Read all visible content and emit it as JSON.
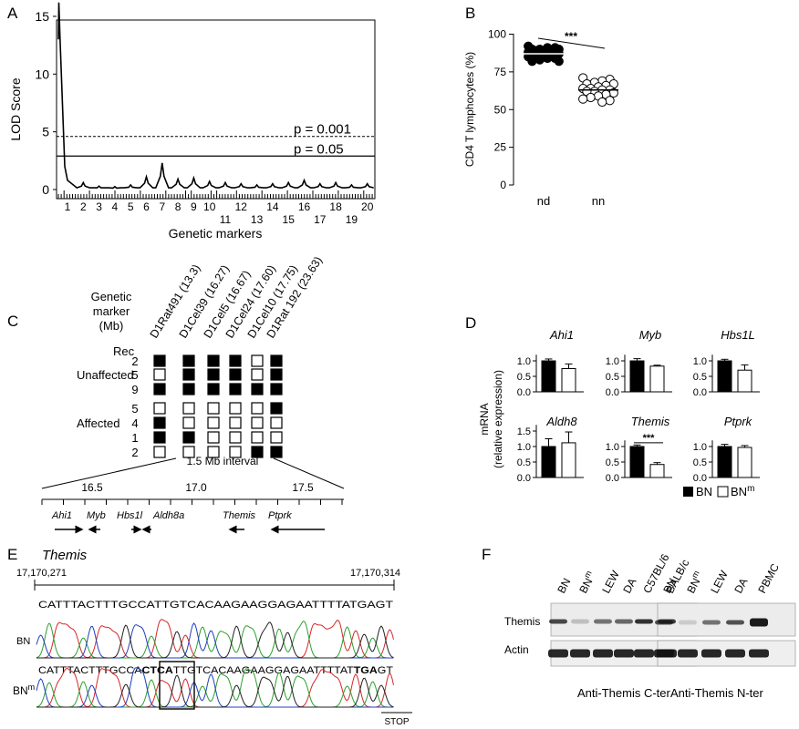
{
  "panels": {
    "A": {
      "letter": "A",
      "ylabel": "LOD Score",
      "xlabel": "Genetic markers",
      "y_ticks": [
        "0",
        "5",
        "10",
        "15"
      ],
      "chromosomes_top": [
        "1",
        "2",
        "3",
        "4",
        "5",
        "6",
        "7",
        "8",
        "9",
        "10",
        "12",
        "14",
        "16",
        "18",
        "20"
      ],
      "chromosomes_bottom": [
        "11",
        "13",
        "15",
        "17",
        "19"
      ],
      "threshold_high": "p = 0.001",
      "threshold_low": "p = 0.05"
    },
    "B": {
      "letter": "B",
      "ylabel": "CD4 T lymphocytes (%)",
      "y_ticks": [
        "0",
        "25",
        "50",
        "75",
        "100"
      ],
      "groups": [
        "nd",
        "nn"
      ],
      "significance": "***"
    },
    "C": {
      "letter": "C",
      "header_line1": "Genetic",
      "header_line2": "marker",
      "header_line3": "(Mb)",
      "markers": [
        "D1Rat491 (13.3)",
        "D1Cel39 (16.27)",
        "D1Cel5 (16.67)",
        "D1Cel24 (17.60)",
        "D1Cel10 (17.75)",
        "D1Rat 192 (23.63)"
      ],
      "rec_label": "Rec",
      "unaffected_label": "Unaffected",
      "affected_label": "Affected",
      "unaffected_rec": [
        "2",
        "5",
        "9"
      ],
      "affected_rec": [
        "5",
        "4",
        "1",
        "2"
      ],
      "unaffected_grid": [
        [
          1,
          1,
          1,
          1,
          0,
          1
        ],
        [
          0,
          1,
          1,
          1,
          0,
          1
        ],
        [
          1,
          1,
          1,
          1,
          1,
          1
        ]
      ],
      "affected_grid": [
        [
          0,
          0,
          0,
          0,
          0,
          1
        ],
        [
          1,
          0,
          0,
          0,
          0,
          0
        ],
        [
          1,
          1,
          0,
          0,
          0,
          0
        ],
        [
          0,
          0,
          0,
          0,
          1,
          1
        ]
      ],
      "interval_label": "1.5 Mb interval",
      "scale_ticks": [
        "16.5",
        "17.0",
        "17.5"
      ],
      "genes": [
        "Ahi1",
        "Myb",
        "Hbs1l",
        "Aldh8a",
        "Themis",
        "Ptprk"
      ]
    },
    "D": {
      "letter": "D",
      "ylabel_line1": "mRNA",
      "ylabel_line2": "(relative expression)",
      "significance": "***",
      "legend_bn": "BN",
      "legend_bnm_base": "BN",
      "legend_bnm_sup": "m"
    },
    "E": {
      "letter": "E",
      "gene": "Themis",
      "start_coord": "17,170,271",
      "end_coord": "17,170,314",
      "seq_bn": "CATTTACTTTGCCATTGTCACAAGAAGGAGAATTTTATGAGT",
      "seq_bnm_a": "CATTTACTTTGCCA",
      "seq_bnm_b": "CTCA",
      "seq_bnm_c": "TTGTCACAAGAAGGAGAATTTTAT",
      "seq_bnm_d": "TGA",
      "seq_bnm_e": "GT",
      "label_bn": "BN",
      "label_bnm_base": "BN",
      "label_bnm_sup": "m",
      "stop_label": "STOP"
    },
    "F": {
      "letter": "F",
      "lanes_left": [
        "BN",
        "BNm",
        "LEW",
        "DA",
        "C57BL/6",
        "BALB/c"
      ],
      "lanes_right": [
        "BN",
        "BNm",
        "LEW",
        "DA",
        "PBMC"
      ],
      "row_themis": "Themis",
      "row_actin": "Actin",
      "caption_left": "Anti-Themis C-ter",
      "caption_right": "Anti-Themis N-ter"
    }
  },
  "chart_data": [
    {
      "panel": "A",
      "type": "line",
      "title": "",
      "xlabel": "Genetic markers",
      "ylabel": "LOD Score",
      "ylim": [
        0,
        16.5
      ],
      "x_categories": [
        "1",
        "2",
        "3",
        "4",
        "5",
        "6",
        "7",
        "8",
        "9",
        "10",
        "11",
        "12",
        "13",
        "14",
        "15",
        "16",
        "17",
        "18",
        "19",
        "20"
      ],
      "peak": {
        "chromosome": "1",
        "lod": 16.2
      },
      "series": [
        {
          "values": [
            16.2,
            0.6,
            0.3,
            0.25,
            0.4,
            1.1,
            2.3,
            0.9,
            1.0,
            0.7,
            0.6,
            0.5,
            0.4,
            0.5,
            0.6,
            0.8,
            0.5,
            0.6,
            0.4,
            0.5
          ]
        }
      ],
      "thresholds": [
        {
          "label": "p = 0.001",
          "value": 4.6,
          "style": "dashed"
        },
        {
          "label": "p = 0.05",
          "value": 2.9,
          "style": "solid"
        }
      ]
    },
    {
      "panel": "B",
      "type": "scatter",
      "title": "",
      "ylabel": "CD4 T lymphocytes (%)",
      "ylim": [
        0,
        100
      ],
      "categories": [
        "nd",
        "nn"
      ],
      "series": [
        {
          "category": "nd",
          "marker": "filled",
          "mean": 87,
          "values": [
            92,
            91,
            91,
            90,
            90,
            90,
            89,
            89,
            89,
            88,
            88,
            88,
            87,
            87,
            87,
            86,
            86,
            85,
            85,
            84,
            84,
            83,
            82,
            82
          ]
        },
        {
          "category": "nn",
          "marker": "open",
          "mean": 63,
          "values": [
            71,
            70,
            69,
            68,
            67,
            67,
            66,
            65,
            64,
            64,
            63,
            63,
            62,
            62,
            61,
            60,
            59,
            58,
            57,
            56,
            55
          ]
        }
      ],
      "significance": "***"
    },
    {
      "panel": "D",
      "type": "bar",
      "title": "",
      "ylabel": "mRNA (relative expression)",
      "legend": [
        "BN",
        "BNm"
      ],
      "subplots": [
        {
          "gene": "Ahi1",
          "y_ticks": [
            "0.0",
            "0.5",
            "1.0"
          ],
          "ylim": [
            0,
            1.2
          ],
          "values": [
            1.0,
            0.75
          ],
          "errors": [
            0.06,
            0.15
          ]
        },
        {
          "gene": "Myb",
          "y_ticks": [
            "0.0",
            "0.5",
            "1.0"
          ],
          "ylim": [
            0,
            1.2
          ],
          "values": [
            1.0,
            0.83
          ],
          "errors": [
            0.07,
            0.03
          ]
        },
        {
          "gene": "Hbs1L",
          "y_ticks": [
            "0.0",
            "0.5",
            "1.0"
          ],
          "ylim": [
            0,
            1.2
          ],
          "values": [
            1.0,
            0.7
          ],
          "errors": [
            0.05,
            0.17
          ]
        },
        {
          "gene": "Aldh8",
          "y_ticks": [
            "0.0",
            "0.5",
            "1.0",
            "1.5"
          ],
          "ylim": [
            0,
            1.7
          ],
          "values": [
            1.0,
            1.12
          ],
          "errors": [
            0.25,
            0.35
          ]
        },
        {
          "gene": "Themis",
          "y_ticks": [
            "0.0",
            "0.5",
            "1.0"
          ],
          "ylim": [
            0,
            1.2
          ],
          "values": [
            1.0,
            0.42
          ],
          "errors": [
            0.05,
            0.06
          ],
          "significance": "***"
        },
        {
          "gene": "Ptprk",
          "y_ticks": [
            "0.0",
            "0.5",
            "1.0"
          ],
          "ylim": [
            0,
            1.2
          ],
          "values": [
            1.0,
            0.97
          ],
          "errors": [
            0.07,
            0.06
          ]
        }
      ]
    }
  ]
}
